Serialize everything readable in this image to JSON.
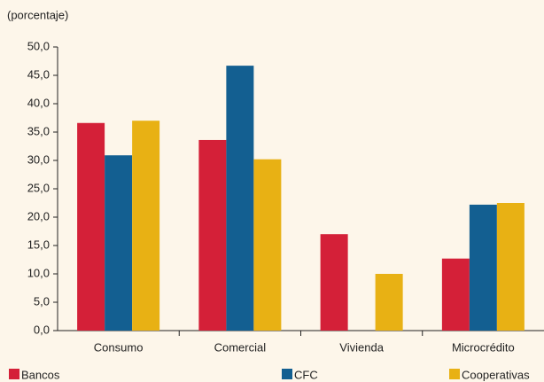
{
  "chart_data": {
    "type": "bar",
    "subtitle": "(porcentaje)",
    "categories": [
      "Consumo",
      "Comercial",
      "Vivienda",
      "Microcrédito"
    ],
    "series": [
      {
        "name": "Bancos",
        "color": "#d42038",
        "values": [
          36.6,
          33.6,
          17.0,
          12.7
        ]
      },
      {
        "name": "CFC",
        "color": "#135f91",
        "values": [
          30.9,
          46.7,
          null,
          22.2
        ]
      },
      {
        "name": "Cooperativas",
        "color": "#e8b114",
        "values": [
          37.0,
          30.2,
          10.0,
          22.5
        ]
      }
    ],
    "ylim": [
      0,
      50
    ],
    "yticks": [
      {
        "value": 0,
        "label": "0,0"
      },
      {
        "value": 5,
        "label": "5,0"
      },
      {
        "value": 10,
        "label": "10,0"
      },
      {
        "value": 15,
        "label": "15,0"
      },
      {
        "value": 20,
        "label": "20,0"
      },
      {
        "value": 25,
        "label": "25,0"
      },
      {
        "value": 30,
        "label": "30,0"
      },
      {
        "value": 35,
        "label": "35,0"
      },
      {
        "value": 40,
        "label": "40,0"
      },
      {
        "value": 45,
        "label": "45,0"
      },
      {
        "value": 50,
        "label": "50,0"
      }
    ]
  }
}
